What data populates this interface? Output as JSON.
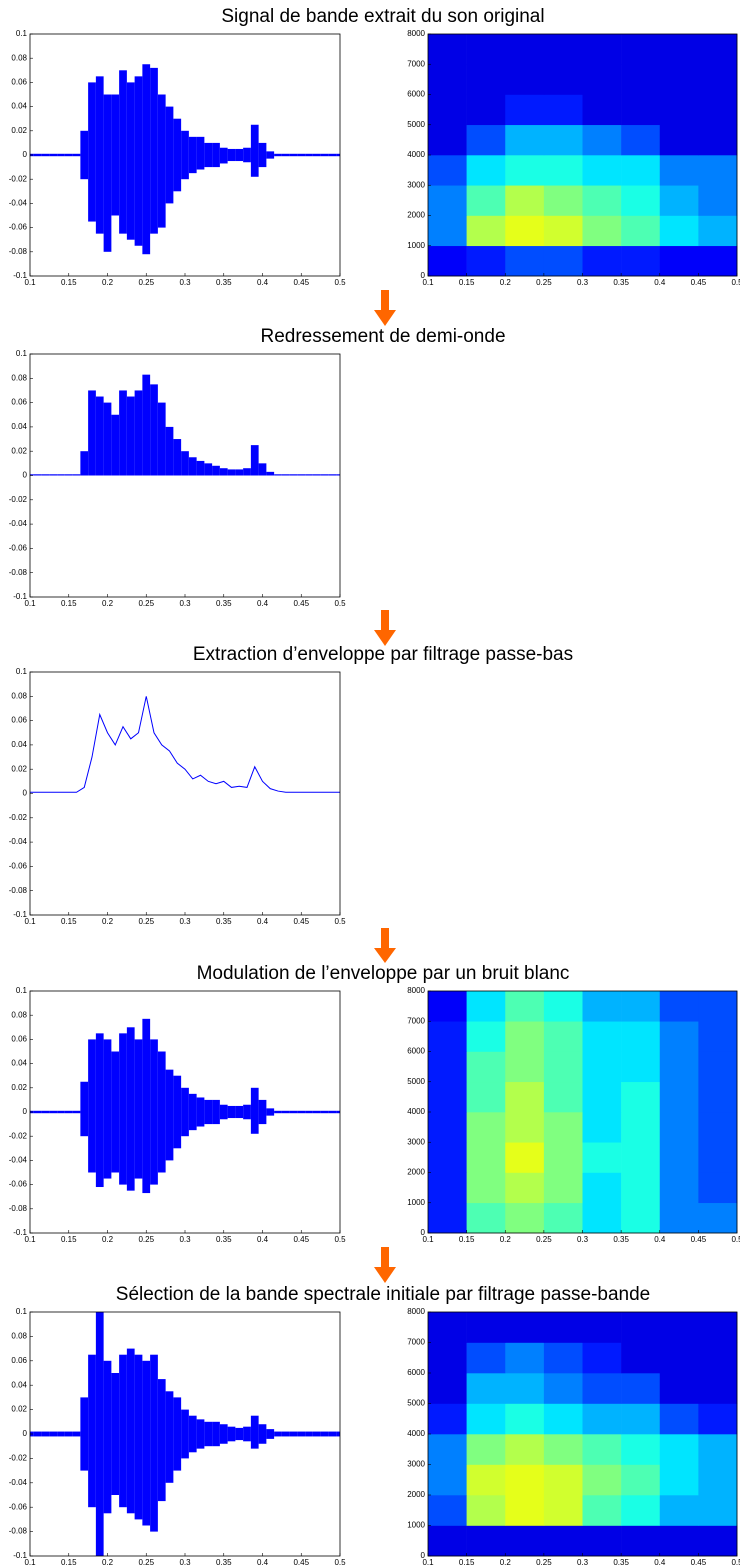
{
  "chart_data": [
    {
      "type": "waveform",
      "title": "Signal de bande extrait du son original",
      "x": [
        0.1,
        0.11,
        0.12,
        0.13,
        0.14,
        0.15,
        0.16,
        0.17,
        0.18,
        0.19,
        0.2,
        0.21,
        0.22,
        0.23,
        0.24,
        0.25,
        0.26,
        0.27,
        0.28,
        0.29,
        0.3,
        0.31,
        0.32,
        0.33,
        0.34,
        0.35,
        0.36,
        0.37,
        0.38,
        0.39,
        0.4,
        0.41,
        0.42,
        0.43,
        0.44,
        0.45,
        0.46,
        0.47,
        0.48,
        0.49,
        0.5
      ],
      "series": [
        {
          "color": "#0000ff",
          "values": [
            0.001,
            0.001,
            0.001,
            0.001,
            0.001,
            0.001,
            0.001,
            0.02,
            0.06,
            0.065,
            0.05,
            0.05,
            0.07,
            0.06,
            0.065,
            0.075,
            0.072,
            0.05,
            0.04,
            0.03,
            0.02,
            0.015,
            0.015,
            0.01,
            0.01,
            0.006,
            0.005,
            0.005,
            0.006,
            0.025,
            0.01,
            0.003,
            0.001,
            0.001,
            0.001,
            0.001,
            0.001,
            0.001,
            0.001,
            0.001,
            0.001
          ]
        },
        {
          "color": "#0000ff",
          "values": [
            -0.001,
            -0.001,
            -0.001,
            -0.001,
            -0.001,
            -0.001,
            -0.001,
            -0.02,
            -0.055,
            -0.065,
            -0.08,
            -0.05,
            -0.065,
            -0.07,
            -0.075,
            -0.082,
            -0.065,
            -0.06,
            -0.04,
            -0.03,
            -0.02,
            -0.015,
            -0.012,
            -0.01,
            -0.01,
            -0.007,
            -0.005,
            -0.005,
            -0.006,
            -0.018,
            -0.01,
            -0.003,
            -0.001,
            -0.001,
            -0.001,
            -0.001,
            -0.001,
            -0.001,
            -0.001,
            -0.001,
            -0.001
          ]
        }
      ],
      "xlim": [
        0.1,
        0.5
      ],
      "ylim": [
        -0.1,
        0.1
      ],
      "xticks": [
        0.1,
        0.15,
        0.2,
        0.25,
        0.3,
        0.35,
        0.4,
        0.45,
        0.5
      ],
      "yticks": [
        -0.1,
        -0.08,
        -0.06,
        -0.04,
        -0.02,
        0,
        0.02,
        0.04,
        0.06,
        0.08,
        0.1
      ]
    },
    {
      "type": "heatmap",
      "colormap": "jet",
      "zlim": [
        0,
        1
      ],
      "z": [
        [
          0.12,
          0.15,
          0.2,
          0.2,
          0.15,
          0.15,
          0.12,
          0.12
        ],
        [
          0.25,
          0.55,
          0.6,
          0.58,
          0.5,
          0.45,
          0.35,
          0.3
        ],
        [
          0.25,
          0.45,
          0.55,
          0.5,
          0.45,
          0.4,
          0.3,
          0.25
        ],
        [
          0.2,
          0.35,
          0.4,
          0.4,
          0.35,
          0.35,
          0.25,
          0.25
        ],
        [
          0.1,
          0.2,
          0.3,
          0.3,
          0.25,
          0.2,
          0.1,
          0.1
        ],
        [
          0.1,
          0.1,
          0.15,
          0.15,
          0.1,
          0.1,
          0.1,
          0.1
        ],
        [
          0.1,
          0.1,
          0.1,
          0.1,
          0.1,
          0.1,
          0.1,
          0.1
        ],
        [
          0.1,
          0.1,
          0.1,
          0.1,
          0.1,
          0.1,
          0.1,
          0.1
        ]
      ],
      "xlim": [
        0.1,
        0.5
      ],
      "ylim": [
        0,
        8000
      ],
      "xticks": [
        0.1,
        0.15,
        0.2,
        0.25,
        0.3,
        0.35,
        0.4,
        0.45,
        0.5
      ],
      "yticks": [
        0,
        1000,
        2000,
        3000,
        4000,
        5000,
        6000,
        7000,
        8000
      ]
    },
    {
      "type": "waveform",
      "title": "Redressement de demi-onde",
      "x": [
        0.1,
        0.11,
        0.12,
        0.13,
        0.14,
        0.15,
        0.16,
        0.17,
        0.18,
        0.19,
        0.2,
        0.21,
        0.22,
        0.23,
        0.24,
        0.25,
        0.26,
        0.27,
        0.28,
        0.29,
        0.3,
        0.31,
        0.32,
        0.33,
        0.34,
        0.35,
        0.36,
        0.37,
        0.38,
        0.39,
        0.4,
        0.41,
        0.42,
        0.43,
        0.44,
        0.45,
        0.46,
        0.47,
        0.48,
        0.49,
        0.5
      ],
      "series": [
        {
          "color": "#0000ff",
          "values": [
            0.001,
            0.001,
            0.001,
            0.001,
            0.001,
            0.001,
            0.001,
            0.02,
            0.07,
            0.065,
            0.06,
            0.05,
            0.07,
            0.065,
            0.07,
            0.083,
            0.075,
            0.06,
            0.04,
            0.03,
            0.02,
            0.015,
            0.012,
            0.01,
            0.008,
            0.006,
            0.005,
            0.005,
            0.006,
            0.025,
            0.01,
            0.003,
            0.001,
            0.001,
            0.001,
            0.001,
            0.001,
            0.001,
            0.001,
            0.001,
            0.001
          ]
        }
      ],
      "xlim": [
        0.1,
        0.5
      ],
      "ylim": [
        -0.1,
        0.1
      ],
      "xticks": [
        0.1,
        0.15,
        0.2,
        0.25,
        0.3,
        0.35,
        0.4,
        0.45,
        0.5
      ],
      "yticks": [
        -0.1,
        -0.08,
        -0.06,
        -0.04,
        -0.02,
        0,
        0.02,
        0.04,
        0.06,
        0.08,
        0.1
      ]
    },
    {
      "type": "line",
      "title": "Extraction d’enveloppe par filtrage passe-bas",
      "color": "#0000ff",
      "x": [
        0.1,
        0.11,
        0.12,
        0.13,
        0.14,
        0.15,
        0.16,
        0.17,
        0.18,
        0.19,
        0.2,
        0.21,
        0.22,
        0.23,
        0.24,
        0.25,
        0.26,
        0.27,
        0.28,
        0.29,
        0.3,
        0.31,
        0.32,
        0.33,
        0.34,
        0.35,
        0.36,
        0.37,
        0.38,
        0.39,
        0.4,
        0.41,
        0.42,
        0.43,
        0.44,
        0.45,
        0.46,
        0.47,
        0.48,
        0.49,
        0.5
      ],
      "values": [
        0.001,
        0.001,
        0.001,
        0.001,
        0.001,
        0.001,
        0.001,
        0.005,
        0.03,
        0.065,
        0.05,
        0.04,
        0.055,
        0.045,
        0.05,
        0.08,
        0.05,
        0.04,
        0.035,
        0.025,
        0.02,
        0.012,
        0.015,
        0.01,
        0.008,
        0.01,
        0.005,
        0.006,
        0.005,
        0.022,
        0.01,
        0.004,
        0.002,
        0.001,
        0.001,
        0.001,
        0.001,
        0.001,
        0.001,
        0.001,
        0.001
      ],
      "xlim": [
        0.1,
        0.5
      ],
      "ylim": [
        -0.1,
        0.1
      ],
      "xticks": [
        0.1,
        0.15,
        0.2,
        0.25,
        0.3,
        0.35,
        0.4,
        0.45,
        0.5
      ],
      "yticks": [
        -0.1,
        -0.08,
        -0.06,
        -0.04,
        -0.02,
        0,
        0.02,
        0.04,
        0.06,
        0.08,
        0.1
      ]
    },
    {
      "type": "waveform",
      "title": "Modulation de l’enveloppe par un bruit blanc",
      "x": [
        0.1,
        0.11,
        0.12,
        0.13,
        0.14,
        0.15,
        0.16,
        0.17,
        0.18,
        0.19,
        0.2,
        0.21,
        0.22,
        0.23,
        0.24,
        0.25,
        0.26,
        0.27,
        0.28,
        0.29,
        0.3,
        0.31,
        0.32,
        0.33,
        0.34,
        0.35,
        0.36,
        0.37,
        0.38,
        0.39,
        0.4,
        0.41,
        0.42,
        0.43,
        0.44,
        0.45,
        0.46,
        0.47,
        0.48,
        0.49,
        0.5
      ],
      "series": [
        {
          "color": "#0000ff",
          "values": [
            0.001,
            0.001,
            0.001,
            0.001,
            0.001,
            0.001,
            0.001,
            0.025,
            0.06,
            0.065,
            0.06,
            0.05,
            0.065,
            0.07,
            0.06,
            0.077,
            0.06,
            0.05,
            0.035,
            0.03,
            0.02,
            0.015,
            0.012,
            0.01,
            0.01,
            0.006,
            0.005,
            0.005,
            0.006,
            0.02,
            0.01,
            0.003,
            0.001,
            0.001,
            0.001,
            0.001,
            0.001,
            0.001,
            0.001,
            0.001,
            0.001
          ]
        },
        {
          "color": "#0000ff",
          "values": [
            -0.001,
            -0.001,
            -0.001,
            -0.001,
            -0.001,
            -0.001,
            -0.001,
            -0.02,
            -0.05,
            -0.062,
            -0.055,
            -0.05,
            -0.06,
            -0.065,
            -0.055,
            -0.067,
            -0.06,
            -0.05,
            -0.04,
            -0.03,
            -0.02,
            -0.015,
            -0.012,
            -0.01,
            -0.01,
            -0.006,
            -0.005,
            -0.005,
            -0.006,
            -0.018,
            -0.01,
            -0.003,
            -0.001,
            -0.001,
            -0.001,
            -0.001,
            -0.001,
            -0.001,
            -0.001,
            -0.001,
            -0.001
          ]
        }
      ],
      "xlim": [
        0.1,
        0.5
      ],
      "ylim": [
        -0.1,
        0.1
      ],
      "xticks": [
        0.1,
        0.15,
        0.2,
        0.25,
        0.3,
        0.35,
        0.4,
        0.45,
        0.5
      ],
      "yticks": [
        -0.1,
        -0.08,
        -0.06,
        -0.04,
        -0.02,
        0,
        0.02,
        0.04,
        0.06,
        0.08,
        0.1
      ]
    },
    {
      "type": "heatmap",
      "colormap": "jet",
      "zlim": [
        0,
        1
      ],
      "z": [
        [
          0.15,
          0.45,
          0.5,
          0.45,
          0.35,
          0.4,
          0.25,
          0.25
        ],
        [
          0.15,
          0.5,
          0.55,
          0.5,
          0.35,
          0.4,
          0.25,
          0.2
        ],
        [
          0.15,
          0.5,
          0.6,
          0.5,
          0.4,
          0.4,
          0.25,
          0.2
        ],
        [
          0.15,
          0.5,
          0.55,
          0.5,
          0.35,
          0.4,
          0.25,
          0.2
        ],
        [
          0.15,
          0.45,
          0.55,
          0.45,
          0.35,
          0.4,
          0.25,
          0.2
        ],
        [
          0.15,
          0.45,
          0.5,
          0.45,
          0.35,
          0.35,
          0.25,
          0.2
        ],
        [
          0.15,
          0.4,
          0.5,
          0.45,
          0.35,
          0.35,
          0.25,
          0.2
        ],
        [
          0.12,
          0.35,
          0.45,
          0.4,
          0.3,
          0.3,
          0.2,
          0.2
        ]
      ],
      "xlim": [
        0.1,
        0.5
      ],
      "ylim": [
        0,
        8000
      ],
      "xticks": [
        0.1,
        0.15,
        0.2,
        0.25,
        0.3,
        0.35,
        0.4,
        0.45,
        0.5
      ],
      "yticks": [
        0,
        1000,
        2000,
        3000,
        4000,
        5000,
        6000,
        7000,
        8000
      ]
    },
    {
      "type": "waveform",
      "title": "Sélection de la bande spectrale initiale par filtrage passe-bande",
      "x": [
        0.1,
        0.11,
        0.12,
        0.13,
        0.14,
        0.15,
        0.16,
        0.17,
        0.18,
        0.19,
        0.2,
        0.21,
        0.22,
        0.23,
        0.24,
        0.25,
        0.26,
        0.27,
        0.28,
        0.29,
        0.3,
        0.31,
        0.32,
        0.33,
        0.34,
        0.35,
        0.36,
        0.37,
        0.38,
        0.39,
        0.4,
        0.41,
        0.42,
        0.43,
        0.44,
        0.45,
        0.46,
        0.47,
        0.48,
        0.49,
        0.5
      ],
      "series": [
        {
          "color": "#0000ff",
          "values": [
            0.002,
            0.002,
            0.002,
            0.002,
            0.002,
            0.002,
            0.002,
            0.03,
            0.065,
            0.1,
            0.06,
            0.05,
            0.065,
            0.07,
            0.065,
            0.06,
            0.065,
            0.045,
            0.035,
            0.03,
            0.02,
            0.015,
            0.012,
            0.01,
            0.01,
            0.008,
            0.006,
            0.005,
            0.006,
            0.015,
            0.008,
            0.004,
            0.002,
            0.002,
            0.002,
            0.002,
            0.002,
            0.002,
            0.002,
            0.002,
            0.002
          ]
        },
        {
          "color": "#0000ff",
          "values": [
            -0.002,
            -0.002,
            -0.002,
            -0.002,
            -0.002,
            -0.002,
            -0.002,
            -0.03,
            -0.06,
            -0.1,
            -0.065,
            -0.05,
            -0.06,
            -0.065,
            -0.07,
            -0.075,
            -0.08,
            -0.055,
            -0.04,
            -0.03,
            -0.02,
            -0.015,
            -0.012,
            -0.01,
            -0.01,
            -0.008,
            -0.006,
            -0.005,
            -0.006,
            -0.012,
            -0.008,
            -0.004,
            -0.002,
            -0.002,
            -0.002,
            -0.002,
            -0.002,
            -0.002,
            -0.002,
            -0.002,
            -0.002
          ]
        }
      ],
      "xlim": [
        0.1,
        0.5
      ],
      "ylim": [
        -0.1,
        0.1
      ],
      "xticks": [
        0.1,
        0.15,
        0.2,
        0.25,
        0.3,
        0.35,
        0.4,
        0.45,
        0.5
      ],
      "yticks": [
        -0.1,
        -0.08,
        -0.06,
        -0.04,
        -0.02,
        0,
        0.02,
        0.04,
        0.06,
        0.08,
        0.1
      ]
    },
    {
      "type": "heatmap",
      "colormap": "jet",
      "zlim": [
        0,
        1
      ],
      "z": [
        [
          0.1,
          0.1,
          0.1,
          0.1,
          0.1,
          0.1,
          0.1,
          0.1
        ],
        [
          0.2,
          0.55,
          0.6,
          0.58,
          0.45,
          0.4,
          0.3,
          0.3
        ],
        [
          0.25,
          0.58,
          0.6,
          0.58,
          0.5,
          0.45,
          0.35,
          0.3
        ],
        [
          0.25,
          0.5,
          0.55,
          0.5,
          0.45,
          0.4,
          0.35,
          0.3
        ],
        [
          0.15,
          0.35,
          0.4,
          0.35,
          0.3,
          0.3,
          0.2,
          0.15
        ],
        [
          0.1,
          0.3,
          0.3,
          0.25,
          0.2,
          0.2,
          0.1,
          0.1
        ],
        [
          0.1,
          0.2,
          0.25,
          0.2,
          0.15,
          0.1,
          0.1,
          0.1
        ],
        [
          0.1,
          0.1,
          0.1,
          0.1,
          0.1,
          0.1,
          0.1,
          0.1
        ]
      ],
      "xlim": [
        0.1,
        0.5
      ],
      "ylim": [
        0,
        8000
      ],
      "xticks": [
        0.1,
        0.15,
        0.2,
        0.25,
        0.3,
        0.35,
        0.4,
        0.45,
        0.5
      ],
      "yticks": [
        0,
        1000,
        2000,
        3000,
        4000,
        5000,
        6000,
        7000,
        8000
      ]
    }
  ]
}
